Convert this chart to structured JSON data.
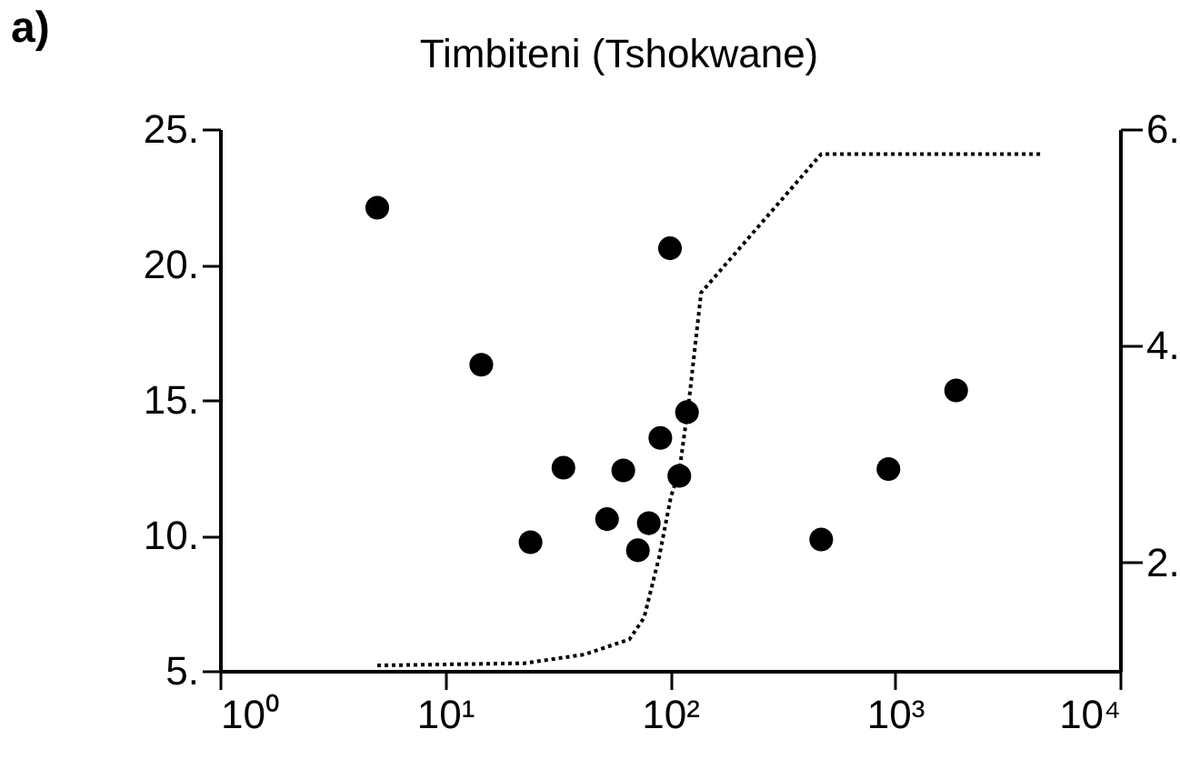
{
  "chart_data": {
    "type": "scatter",
    "title": "Timbiteni (Tshokwane)",
    "annotations": [
      "a)"
    ],
    "log": "x",
    "marker": "circle",
    "xlim": [
      1,
      10000
    ],
    "xticks": [
      {
        "value": 1,
        "label": "10⁰"
      },
      {
        "value": 10,
        "label": "10¹"
      },
      {
        "value": 100,
        "label": "10²"
      },
      {
        "value": 1000,
        "label": "10³"
      },
      {
        "value": 10000,
        "label": "10⁴"
      }
    ],
    "ylim": [
      5,
      25
    ],
    "yticks": [
      {
        "value": 5,
        "label": "5."
      },
      {
        "value": 10,
        "label": "10."
      },
      {
        "value": 15,
        "label": "15."
      },
      {
        "value": 20,
        "label": "20."
      },
      {
        "value": 25,
        "label": "25."
      }
    ],
    "y2lim": [
      1,
      6
    ],
    "y2ticks": [
      {
        "value": 2,
        "label": "2."
      },
      {
        "value": 4,
        "label": "4."
      },
      {
        "value": 6,
        "label": "6."
      }
    ],
    "series": [
      {
        "color": "#000000",
        "x": [
          5,
          14.5,
          24,
          33.6,
          52.5,
          62,
          72,
          80.5,
          90.6,
          100,
          110,
          119,
          470,
          935,
          1870
        ],
        "values": [
          22.1,
          16.3,
          9.75,
          12.5,
          10.6,
          12.4,
          9.45,
          10.45,
          13.6,
          20.6,
          12.2,
          14.55,
          9.85,
          12.45,
          15.35
        ]
      },
      {
        "type": "line",
        "axis": "y2",
        "color": "#000000",
        "line_style": "dotted",
        "marker": "none",
        "x": [
          5,
          22.5,
          41.4,
          66,
          76.7,
          89.5,
          101,
          110,
          121.7,
          137.5,
          470,
          4420
        ],
        "values": [
          1.05,
          1.07,
          1.15,
          1.29,
          1.49,
          2.05,
          2.61,
          2.84,
          3.51,
          4.49,
          5.77,
          5.77
        ]
      }
    ]
  }
}
